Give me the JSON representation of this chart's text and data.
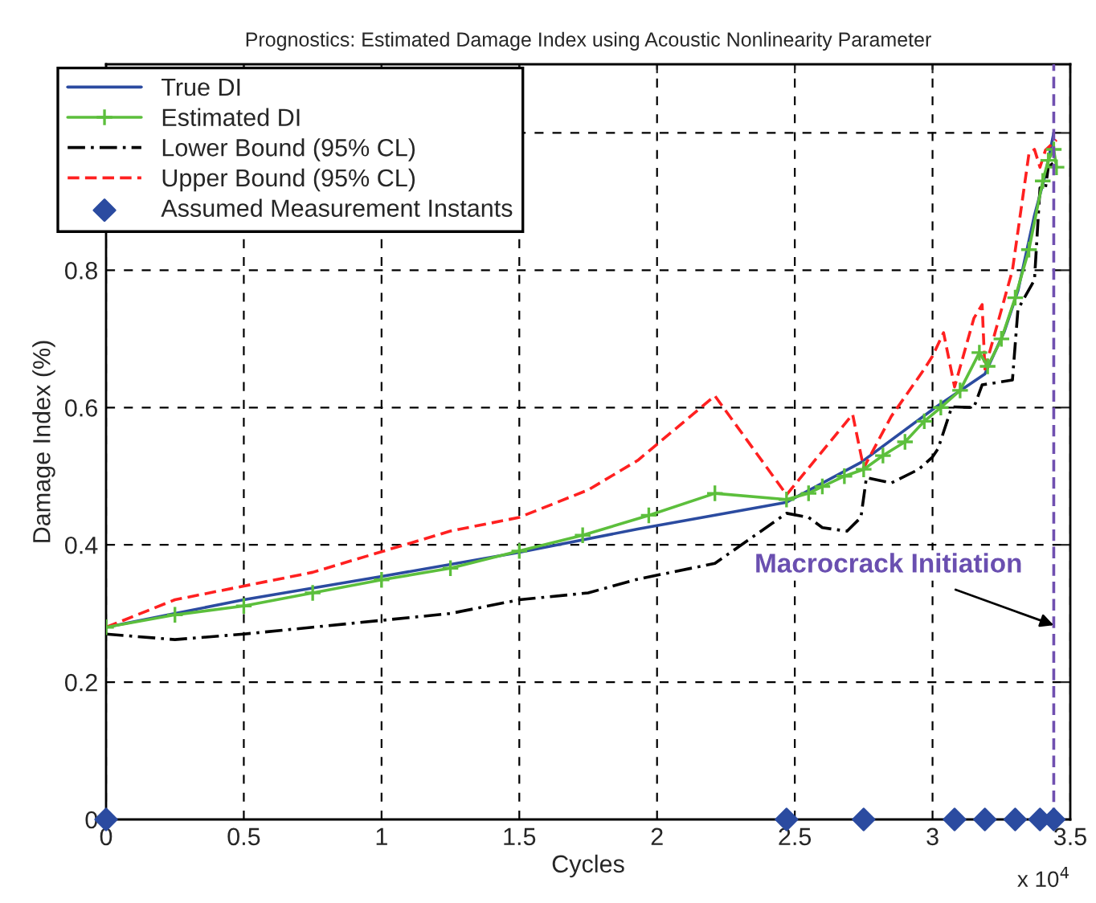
{
  "chart_data": {
    "type": "line",
    "title": "Prognostics: Estimated Damage Index using Acoustic Nonlinearity Parameter",
    "xlabel": "Cycles",
    "ylabel": "Damage Index (%)",
    "xlim": [
      0,
      3.5
    ],
    "xticks": [
      0,
      0.5,
      1,
      1.5,
      2,
      2.5,
      3,
      3.5
    ],
    "ylim": [
      0,
      1.1
    ],
    "yticks": [
      0,
      0.2,
      0.4,
      0.6,
      0.8,
      {
        "value": 1,
        "label": null
      }
    ],
    "grid": true,
    "legend": "top left",
    "series": [
      {
        "name": "True DI",
        "color": "#2b4ba0",
        "line_style": "solid",
        "x": [
          0,
          0.5,
          1.0,
          1.5,
          1.93,
          2.47,
          2.74,
          3.01,
          3.19,
          3.26,
          3.31,
          3.37,
          3.41,
          3.44
        ],
        "values": [
          0.28,
          0.32,
          0.354,
          0.389,
          0.423,
          0.462,
          0.52,
          0.6,
          0.649,
          0.71,
          0.77,
          0.88,
          0.94,
          1.0
        ]
      },
      {
        "name": "Estimated DI",
        "color": "#5cbf3c",
        "line_style": "solid",
        "marker": "cross",
        "x": [
          0,
          0.25,
          0.5,
          0.75,
          1.0,
          1.25,
          1.5,
          1.73,
          1.97,
          2.21,
          2.47,
          2.55,
          2.6,
          2.68,
          2.75,
          2.82,
          2.9,
          2.97,
          3.03,
          3.1,
          3.17,
          3.2,
          3.25,
          3.3,
          3.35,
          3.4,
          3.42,
          3.44,
          3.45
        ],
        "values": [
          0.28,
          0.298,
          0.311,
          0.33,
          0.349,
          0.366,
          0.391,
          0.414,
          0.443,
          0.475,
          0.466,
          0.475,
          0.485,
          0.5,
          0.51,
          0.53,
          0.55,
          0.58,
          0.6,
          0.625,
          0.68,
          0.66,
          0.7,
          0.76,
          0.83,
          0.93,
          0.96,
          0.976,
          0.95
        ]
      },
      {
        "name": "Lower Bound (95% CL)",
        "color": "#000000",
        "line_style": "dashdot",
        "x": [
          0,
          0.25,
          0.5,
          0.75,
          1.0,
          1.25,
          1.5,
          1.75,
          1.93,
          2.21,
          2.47,
          2.55,
          2.6,
          2.69,
          2.74,
          2.76,
          2.85,
          2.95,
          3.0,
          3.02,
          3.07,
          3.15,
          3.18,
          3.29,
          3.31,
          3.37,
          3.39,
          3.41,
          3.42,
          3.45
        ],
        "values": [
          0.27,
          0.262,
          0.27,
          0.28,
          0.29,
          0.3,
          0.32,
          0.33,
          0.35,
          0.373,
          0.446,
          0.44,
          0.425,
          0.42,
          0.44,
          0.498,
          0.49,
          0.51,
          0.528,
          0.54,
          0.601,
          0.6,
          0.633,
          0.64,
          0.743,
          0.786,
          0.92,
          0.92,
          0.95,
          0.96
        ]
      },
      {
        "name": "Upper Bound (95% CL)",
        "color": "#ff2020",
        "line_style": "dashed",
        "x": [
          0,
          0.25,
          0.5,
          0.75,
          1.0,
          1.25,
          1.5,
          1.75,
          1.93,
          2.21,
          2.47,
          2.71,
          2.75,
          2.85,
          2.97,
          3.0,
          3.04,
          3.08,
          3.15,
          3.18,
          3.19,
          3.29,
          3.35,
          3.37,
          3.39,
          3.41,
          3.45
        ],
        "values": [
          0.28,
          0.32,
          0.34,
          0.36,
          0.39,
          0.42,
          0.44,
          0.48,
          0.523,
          0.617,
          0.473,
          0.59,
          0.512,
          0.587,
          0.656,
          0.675,
          0.709,
          0.63,
          0.73,
          0.75,
          0.656,
          0.8,
          0.97,
          0.976,
          0.95,
          0.975,
          0.99
        ]
      },
      {
        "name": "Assumed Measurement Instants",
        "type": "scatter",
        "color": "#2b4ba0",
        "marker": "diamond",
        "x": [
          0,
          2.47,
          2.75,
          3.08,
          3.19,
          3.3,
          3.39,
          3.44
        ],
        "values": [
          0,
          0,
          0,
          0,
          0,
          0,
          0,
          0
        ]
      }
    ],
    "ref_lines": [
      {
        "axis": "x",
        "value": 3.44,
        "label": null,
        "color": "#7050b0",
        "line_style": "dashed"
      }
    ],
    "annotations": [
      {
        "text": "Macrocrack Initiation",
        "x": 3.44,
        "y": 0.283
      },
      "x 10$^{4}$"
    ]
  }
}
